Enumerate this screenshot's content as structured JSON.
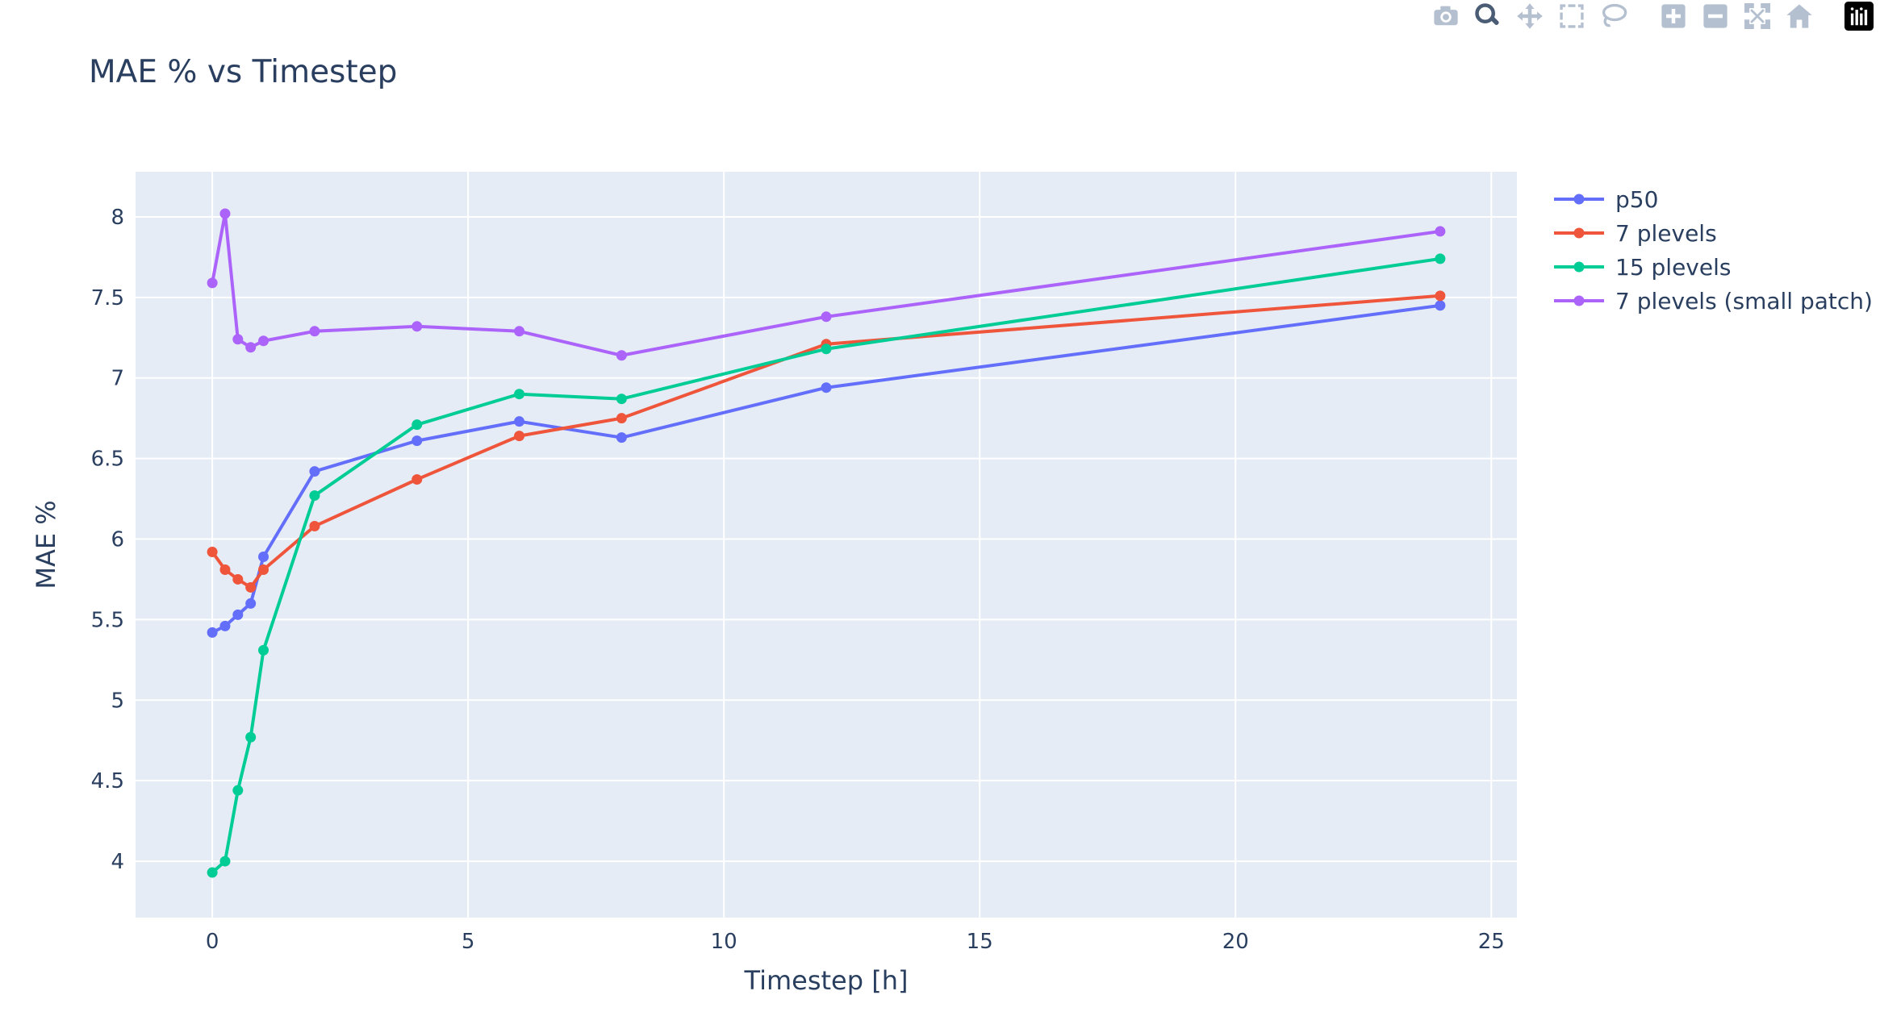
{
  "modebar": {
    "buttons": [
      {
        "icon": "camera-icon",
        "active": false
      },
      {
        "icon": "zoom-icon",
        "active": true
      },
      {
        "icon": "pan-icon",
        "active": false
      },
      {
        "icon": "box-select-icon",
        "active": false
      },
      {
        "icon": "lasso-select-icon",
        "active": false
      },
      {
        "icon": "zoom-in-icon",
        "active": false
      },
      {
        "icon": "zoom-out-icon",
        "active": false
      },
      {
        "icon": "autoscale-icon",
        "active": false
      },
      {
        "icon": "reset-axes-icon",
        "active": false
      },
      {
        "icon": "plotly-logo-icon",
        "active": false
      }
    ]
  },
  "colors": {
    "plot_bg": "#e5ecf6",
    "grid": "#ffffff",
    "text": "#2a3f5f",
    "modebar_icon": "#b4c0d0",
    "modebar_active": "#4b5d75"
  },
  "chart_data": {
    "type": "line",
    "title": "MAE % vs Timestep",
    "xlabel": "Timestep [h]",
    "ylabel": "MAE %",
    "xlim": [
      -1.5,
      25.5
    ],
    "ylim": [
      3.65,
      8.28
    ],
    "xticks": [
      0,
      5,
      10,
      15,
      20,
      25
    ],
    "yticks": [
      4,
      4.5,
      5,
      5.5,
      6,
      6.5,
      7,
      7.5,
      8
    ],
    "grid": true,
    "legend_position": "top-right",
    "x": [
      0,
      0.25,
      0.5,
      0.75,
      1,
      2,
      4,
      6,
      8,
      12,
      24
    ],
    "series": [
      {
        "name": "p50",
        "color": "#636efa",
        "values": [
          5.42,
          5.46,
          5.53,
          5.6,
          5.89,
          6.42,
          6.61,
          6.73,
          6.63,
          6.94,
          7.45
        ]
      },
      {
        "name": "7 plevels",
        "color": "#ef553b",
        "values": [
          5.92,
          5.81,
          5.75,
          5.7,
          5.81,
          6.08,
          6.37,
          6.64,
          6.75,
          7.21,
          7.51
        ]
      },
      {
        "name": "15 plevels",
        "color": "#00cc96",
        "values": [
          3.93,
          4.0,
          4.44,
          4.77,
          5.31,
          6.27,
          6.71,
          6.9,
          6.87,
          7.18,
          7.74
        ]
      },
      {
        "name": "7 plevels (small patch)",
        "color": "#ab63fa",
        "values": [
          7.59,
          8.02,
          7.24,
          7.19,
          7.23,
          7.29,
          7.32,
          7.29,
          7.14,
          7.38,
          7.91
        ]
      }
    ]
  }
}
